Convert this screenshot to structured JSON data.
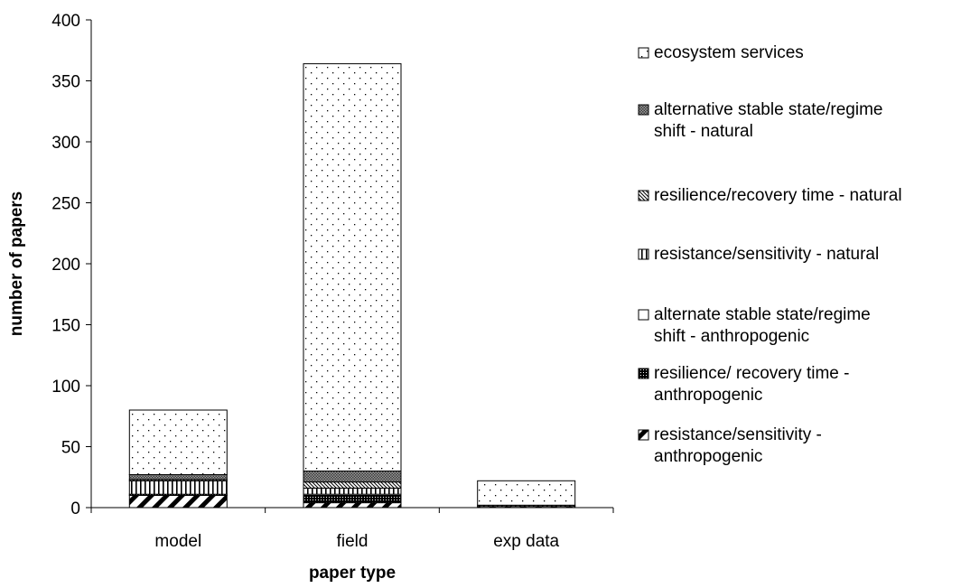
{
  "chart_data": {
    "type": "bar",
    "stacked": true,
    "title": "",
    "xlabel": "paper type",
    "ylabel": "number of papers",
    "categories": [
      "model",
      "field",
      "exp data"
    ],
    "ylim": [
      0,
      400
    ],
    "yticks": [
      0,
      50,
      100,
      150,
      200,
      250,
      300,
      350,
      400
    ],
    "grid": false,
    "legend_position": "right",
    "series": [
      {
        "name": "resistance/sensitivity - anthropogenic",
        "values": [
          10,
          4,
          1
        ],
        "pattern": "diagonal-thick"
      },
      {
        "name": "resilience/ recovery time - anthropogenic",
        "values": [
          1,
          6,
          0
        ],
        "pattern": "dense-dots"
      },
      {
        "name": "alternate stable state/regime shift - anthropogenic",
        "values": [
          0,
          1,
          0
        ],
        "pattern": "white"
      },
      {
        "name": "resistance/sensitivity - natural",
        "values": [
          11,
          5,
          1
        ],
        "pattern": "vertical"
      },
      {
        "name": "resilience/recovery time - natural",
        "values": [
          1,
          5,
          0
        ],
        "pattern": "diagonal-thin"
      },
      {
        "name": "alternative stable state/regime shift - natural",
        "values": [
          4,
          9,
          0
        ],
        "pattern": "crosshatch"
      },
      {
        "name": "ecosystem services",
        "values": [
          53,
          334,
          20
        ],
        "pattern": "sparse-dots"
      }
    ],
    "legend_order": [
      {
        "series_index": 6,
        "lines": [
          "ecosystem services"
        ]
      },
      {
        "series_index": 5,
        "lines": [
          "alternative stable state/regime",
          "shift - natural"
        ]
      },
      {
        "series_index": 4,
        "lines": [
          "resilience/recovery time - natural"
        ]
      },
      {
        "series_index": 3,
        "lines": [
          "resistance/sensitivity - natural"
        ]
      },
      {
        "series_index": 2,
        "lines": [
          "alternate stable state/regime",
          "shift - anthropogenic"
        ]
      },
      {
        "series_index": 1,
        "lines": [
          "resilience/ recovery time -",
          "anthropogenic"
        ]
      },
      {
        "series_index": 0,
        "lines": [
          "resistance/sensitivity -",
          "anthropogenic"
        ]
      }
    ]
  }
}
